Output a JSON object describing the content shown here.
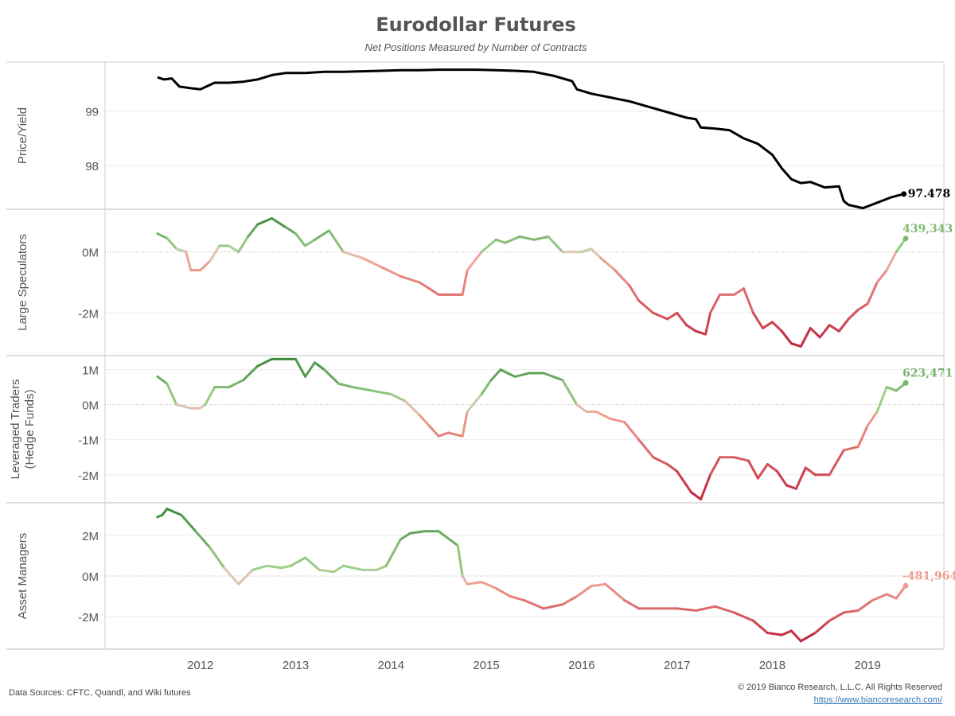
{
  "title": "Eurodollar Futures",
  "subtitle": "Net Positions Measured by Number of Contracts",
  "footer": {
    "sources": "Data Sources: CFTC, Quandl, and Wiki futures",
    "copyright": "© 2019 Bianco Research, L.L.C. All Rights Reserved",
    "link": "https://www.biancoresearch.com/"
  },
  "colors": {
    "price": "#000000",
    "positive_light": "#9fd08a",
    "positive_dark": "#3d8a3d",
    "neutral": "#d9c9b8",
    "negative_light": "#f0a090",
    "negative_dark": "#c0203a"
  },
  "chart_data": [
    {
      "type": "line",
      "panel": "Price/Yield",
      "ylabel": "Price/Yield",
      "ylim": [
        97.2,
        99.9
      ],
      "yticks": [
        98,
        99
      ],
      "ytick_labels": [
        "98",
        "99"
      ],
      "end_label": "97.478",
      "color_mode": "solid",
      "x": [
        2011.55,
        2011.62,
        2011.7,
        2011.78,
        2011.9,
        2012.0,
        2012.15,
        2012.3,
        2012.45,
        2012.6,
        2012.75,
        2012.9,
        2013.1,
        2013.3,
        2013.5,
        2013.7,
        2013.9,
        2014.1,
        2014.3,
        2014.5,
        2014.7,
        2014.9,
        2015.1,
        2015.3,
        2015.5,
        2015.7,
        2015.9,
        2015.95,
        2016.1,
        2016.3,
        2016.5,
        2016.7,
        2016.9,
        2017.1,
        2017.2,
        2017.25,
        2017.4,
        2017.55,
        2017.7,
        2017.85,
        2018.0,
        2018.1,
        2018.2,
        2018.3,
        2018.4,
        2018.55,
        2018.7,
        2018.75,
        2018.8,
        2018.95,
        2019.1,
        2019.25,
        2019.38
      ],
      "y": [
        99.62,
        99.58,
        99.6,
        99.45,
        99.42,
        99.4,
        99.52,
        99.52,
        99.54,
        99.58,
        99.66,
        99.7,
        99.7,
        99.72,
        99.72,
        99.73,
        99.74,
        99.75,
        99.75,
        99.76,
        99.76,
        99.76,
        99.75,
        99.74,
        99.72,
        99.65,
        99.55,
        99.4,
        99.32,
        99.25,
        99.18,
        99.08,
        98.98,
        98.88,
        98.85,
        98.7,
        98.68,
        98.65,
        98.5,
        98.4,
        98.2,
        97.95,
        97.75,
        97.68,
        97.7,
        97.6,
        97.62,
        97.35,
        97.28,
        97.22,
        97.32,
        97.42,
        97.48
      ]
    },
    {
      "type": "line",
      "panel": "Large Speculators",
      "ylabel": "Large Speculators",
      "ylim": [
        -3.4,
        1.4
      ],
      "yticks": [
        -2,
        0
      ],
      "ytick_labels": [
        "-2M",
        "0M"
      ],
      "end_label": "439,343",
      "color_mode": "value",
      "x": [
        2011.55,
        2011.65,
        2011.75,
        2011.85,
        2011.9,
        2012.0,
        2012.1,
        2012.2,
        2012.3,
        2012.4,
        2012.5,
        2012.6,
        2012.75,
        2012.9,
        2013.0,
        2013.1,
        2013.2,
        2013.35,
        2013.5,
        2013.7,
        2013.9,
        2014.1,
        2014.3,
        2014.4,
        2014.5,
        2014.6,
        2014.75,
        2014.8,
        2014.95,
        2015.1,
        2015.2,
        2015.35,
        2015.5,
        2015.65,
        2015.8,
        2015.9,
        2016.0,
        2016.1,
        2016.2,
        2016.35,
        2016.5,
        2016.6,
        2016.75,
        2016.9,
        2017.0,
        2017.1,
        2017.2,
        2017.3,
        2017.35,
        2017.45,
        2017.6,
        2017.7,
        2017.8,
        2017.9,
        2018.0,
        2018.1,
        2018.2,
        2018.3,
        2018.4,
        2018.5,
        2018.6,
        2018.7,
        2018.8,
        2018.9,
        2019.0,
        2019.1,
        2019.2,
        2019.3,
        2019.4
      ],
      "y": [
        0.6,
        0.45,
        0.1,
        0.0,
        -0.6,
        -0.6,
        -0.3,
        0.2,
        0.2,
        0.0,
        0.5,
        0.9,
        1.1,
        0.8,
        0.6,
        0.2,
        0.4,
        0.7,
        0.0,
        -0.2,
        -0.5,
        -0.8,
        -1.0,
        -1.2,
        -1.4,
        -1.4,
        -1.4,
        -0.6,
        0.0,
        0.4,
        0.3,
        0.5,
        0.4,
        0.5,
        0.0,
        0.0,
        0.0,
        0.1,
        -0.2,
        -0.6,
        -1.1,
        -1.6,
        -2.0,
        -2.2,
        -2.0,
        -2.4,
        -2.6,
        -2.7,
        -2.0,
        -1.4,
        -1.4,
        -1.2,
        -2.0,
        -2.5,
        -2.3,
        -2.6,
        -3.0,
        -3.1,
        -2.5,
        -2.8,
        -2.4,
        -2.6,
        -2.2,
        -1.9,
        -1.7,
        -1.0,
        -0.6,
        0.0,
        0.44
      ]
    },
    {
      "type": "line",
      "panel": "Leveraged Traders (Hedge Funds)",
      "ylabel": [
        "Leveraged Traders",
        "(Hedge Funds)"
      ],
      "ylim": [
        -2.8,
        1.4
      ],
      "yticks": [
        -2,
        -1,
        0,
        1
      ],
      "ytick_labels": [
        "-2M",
        "-1M",
        "0M",
        "1M"
      ],
      "end_label": "623,471",
      "color_mode": "value",
      "x": [
        2011.55,
        2011.65,
        2011.75,
        2011.9,
        2012.0,
        2012.05,
        2012.15,
        2012.3,
        2012.45,
        2012.6,
        2012.75,
        2012.9,
        2013.0,
        2013.1,
        2013.2,
        2013.3,
        2013.45,
        2013.6,
        2013.8,
        2014.0,
        2014.15,
        2014.3,
        2014.4,
        2014.5,
        2014.6,
        2014.75,
        2014.8,
        2014.95,
        2015.05,
        2015.15,
        2015.3,
        2015.45,
        2015.6,
        2015.8,
        2015.95,
        2016.05,
        2016.15,
        2016.3,
        2016.45,
        2016.6,
        2016.75,
        2016.9,
        2017.0,
        2017.15,
        2017.25,
        2017.35,
        2017.45,
        2017.6,
        2017.75,
        2017.85,
        2017.95,
        2018.05,
        2018.15,
        2018.25,
        2018.35,
        2018.45,
        2018.6,
        2018.75,
        2018.9,
        2019.0,
        2019.1,
        2019.2,
        2019.3,
        2019.4
      ],
      "y": [
        0.8,
        0.6,
        0.0,
        -0.1,
        -0.1,
        0.0,
        0.5,
        0.5,
        0.7,
        1.1,
        1.3,
        1.3,
        1.3,
        0.8,
        1.2,
        1.0,
        0.6,
        0.5,
        0.4,
        0.3,
        0.1,
        -0.3,
        -0.6,
        -0.9,
        -0.8,
        -0.9,
        -0.2,
        0.3,
        0.7,
        1.0,
        0.8,
        0.9,
        0.9,
        0.7,
        0.0,
        -0.2,
        -0.2,
        -0.4,
        -0.5,
        -1.0,
        -1.5,
        -1.7,
        -1.9,
        -2.5,
        -2.7,
        -2.0,
        -1.5,
        -1.5,
        -1.6,
        -2.1,
        -1.7,
        -1.9,
        -2.3,
        -2.4,
        -1.8,
        -2.0,
        -2.0,
        -1.3,
        -1.2,
        -0.6,
        -0.2,
        0.5,
        0.4,
        0.62
      ]
    },
    {
      "type": "line",
      "panel": "Asset Managers",
      "ylabel": "Asset Managers",
      "ylim": [
        -3.6,
        3.6
      ],
      "yticks": [
        -2,
        0,
        2
      ],
      "ytick_labels": [
        "-2M",
        "0M",
        "2M"
      ],
      "end_label": "-481,964",
      "color_mode": "value",
      "x": [
        2011.55,
        2011.6,
        2011.65,
        2011.8,
        2011.95,
        2012.1,
        2012.25,
        2012.4,
        2012.55,
        2012.7,
        2012.85,
        2012.95,
        2013.1,
        2013.25,
        2013.4,
        2013.5,
        2013.7,
        2013.85,
        2013.95,
        2014.1,
        2014.2,
        2014.35,
        2014.5,
        2014.7,
        2014.75,
        2014.8,
        2014.95,
        2015.1,
        2015.25,
        2015.4,
        2015.6,
        2015.8,
        2015.95,
        2016.1,
        2016.25,
        2016.45,
        2016.6,
        2016.8,
        2017.0,
        2017.2,
        2017.4,
        2017.6,
        2017.8,
        2017.95,
        2018.1,
        2018.2,
        2018.3,
        2018.45,
        2018.6,
        2018.75,
        2018.9,
        2019.05,
        2019.2,
        2019.3,
        2019.4
      ],
      "y": [
        2.9,
        3.0,
        3.3,
        3.0,
        2.2,
        1.4,
        0.4,
        -0.4,
        0.3,
        0.5,
        0.4,
        0.5,
        0.9,
        0.3,
        0.2,
        0.5,
        0.3,
        0.3,
        0.5,
        1.8,
        2.1,
        2.2,
        2.2,
        1.5,
        0.0,
        -0.4,
        -0.3,
        -0.6,
        -1.0,
        -1.2,
        -1.6,
        -1.4,
        -1.0,
        -0.5,
        -0.4,
        -1.2,
        -1.6,
        -1.6,
        -1.6,
        -1.7,
        -1.5,
        -1.8,
        -2.2,
        -2.8,
        -2.9,
        -2.7,
        -3.2,
        -2.8,
        -2.2,
        -1.8,
        -1.7,
        -1.2,
        -0.9,
        -1.1,
        -0.48
      ]
    }
  ],
  "x_axis": {
    "ticks": [
      2012,
      2013,
      2014,
      2015,
      2016,
      2017,
      2018,
      2019
    ],
    "tick_labels": [
      "2012",
      "2013",
      "2014",
      "2015",
      "2016",
      "2017",
      "2018",
      "2019"
    ],
    "range": [
      2011.0,
      2019.8
    ]
  }
}
